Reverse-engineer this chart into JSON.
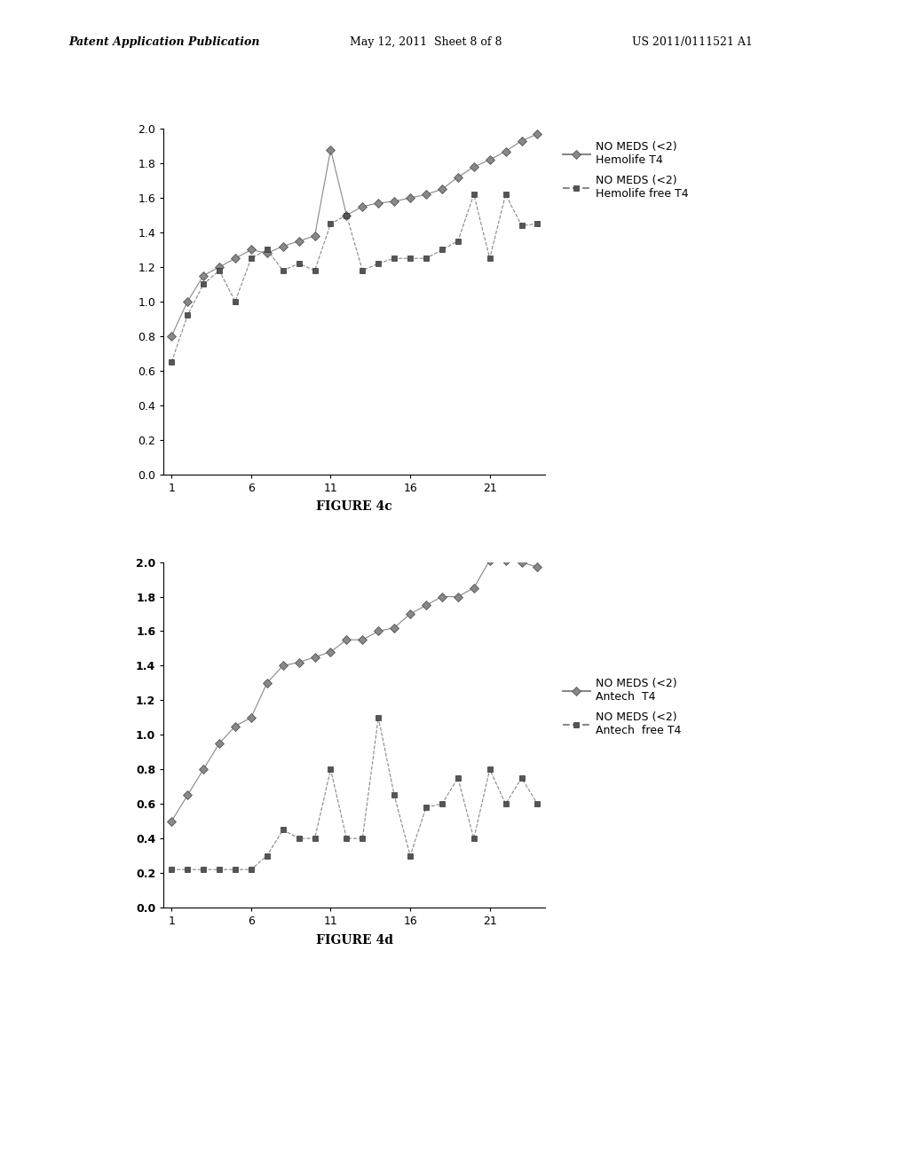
{
  "header_left": "Patent Application Publication",
  "header_middle": "May 12, 2011  Sheet 8 of 8",
  "header_right": "US 2011/0111521 A1",
  "fig4c_caption": "FIGURE 4c",
  "fig4d_caption": "FIGURE 4d",
  "fig4c_t4_x": [
    1,
    2,
    3,
    4,
    5,
    6,
    7,
    8,
    9,
    10,
    11,
    12,
    13,
    14,
    15,
    16,
    17,
    18,
    19,
    20,
    21,
    22,
    23,
    24
  ],
  "fig4c_t4_y": [
    0.8,
    1.0,
    1.15,
    1.2,
    1.25,
    1.3,
    1.28,
    1.32,
    1.35,
    1.38,
    1.88,
    1.5,
    1.55,
    1.57,
    1.58,
    1.6,
    1.62,
    1.65,
    1.72,
    1.78,
    1.82,
    1.87,
    1.93,
    1.97
  ],
  "fig4c_free_x": [
    1,
    2,
    3,
    4,
    5,
    6,
    7,
    8,
    9,
    10,
    11,
    12,
    13,
    14,
    15,
    16,
    17,
    18,
    19,
    20,
    21,
    22,
    23,
    24
  ],
  "fig4c_free_y": [
    0.65,
    0.92,
    1.1,
    1.18,
    1.0,
    1.25,
    1.3,
    1.18,
    1.22,
    1.18,
    1.45,
    1.5,
    1.18,
    1.22,
    1.25,
    1.25,
    1.25,
    1.3,
    1.35,
    1.62,
    1.25,
    1.62,
    1.44,
    1.45
  ],
  "fig4d_t4_x": [
    1,
    2,
    3,
    4,
    5,
    6,
    7,
    8,
    9,
    10,
    11,
    12,
    13,
    14,
    15,
    16,
    17,
    18,
    19,
    20,
    21,
    22,
    23,
    24
  ],
  "fig4d_t4_y": [
    0.5,
    0.65,
    0.8,
    0.95,
    1.05,
    1.1,
    1.3,
    1.4,
    1.42,
    1.45,
    1.48,
    1.55,
    1.55,
    1.6,
    1.62,
    1.7,
    1.75,
    1.8,
    1.8,
    1.85,
    2.01,
    2.01,
    2.0,
    1.97
  ],
  "fig4d_free_x": [
    1,
    2,
    3,
    4,
    5,
    6,
    7,
    8,
    9,
    10,
    11,
    12,
    13,
    14,
    15,
    16,
    17,
    18,
    19,
    20,
    21,
    22,
    23,
    24
  ],
  "fig4d_free_y": [
    0.22,
    0.22,
    0.22,
    0.22,
    0.22,
    0.22,
    0.3,
    0.45,
    0.4,
    0.4,
    0.8,
    0.4,
    0.4,
    1.1,
    0.65,
    0.3,
    0.58,
    0.6,
    0.75,
    0.4,
    0.8,
    0.6,
    0.75,
    0.6
  ],
  "line_color_t4": "#888888",
  "line_color_free": "#888888",
  "marker_color_diamond": "#888888",
  "marker_color_square": "#555555",
  "ylim": [
    0.0,
    2.0
  ],
  "yticks": [
    0.0,
    0.2,
    0.4,
    0.6,
    0.8,
    1.0,
    1.2,
    1.4,
    1.6,
    1.8,
    2.0
  ],
  "xticks": [
    1,
    6,
    11,
    16,
    21
  ],
  "legend1_t4": "NO MEDS (<2)\nHemolife T4",
  "legend1_free": "NO MEDS (<2)\nHemolife free T4",
  "legend2_t4": "NO MEDS (<2)\nAntech  T4",
  "legend2_free": "NO MEDS (<2)\nAntech  free T4"
}
